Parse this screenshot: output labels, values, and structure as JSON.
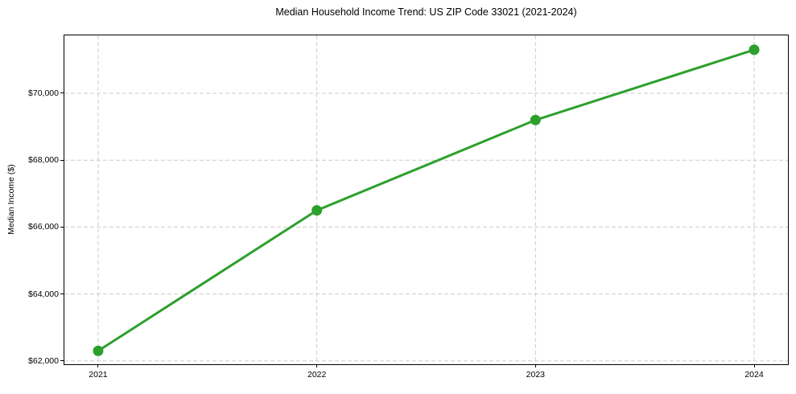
{
  "figure": {
    "background": "#ffffff"
  },
  "chart_data": {
    "type": "line",
    "title": "Median Household Income Trend: US ZIP Code 33021 (2021-2024)",
    "xlabel": "",
    "ylabel": "Median Income ($)",
    "categories": [
      "2021",
      "2022",
      "2023",
      "2024"
    ],
    "series": [
      {
        "name": "Median Household Income",
        "values": [
          62300,
          66500,
          69200,
          71300
        ],
        "color": "#2ca02c",
        "marker": "circle",
        "line_width": 3
      }
    ],
    "ylim": [
      61900,
      71730
    ],
    "yticks": [
      62000,
      64000,
      66000,
      68000,
      70000
    ],
    "ytick_labels": [
      "$62,000",
      "$64,000",
      "$66,000",
      "$68,000",
      "$70,000"
    ],
    "xtick_labels": [
      "2021",
      "2022",
      "2023",
      "2024"
    ],
    "grid": true,
    "grid_style": "dashed",
    "grid_color": "#cccccc",
    "axis_color": "#000000",
    "text_color": "#000000",
    "legend": false,
    "legend_position": "none"
  }
}
